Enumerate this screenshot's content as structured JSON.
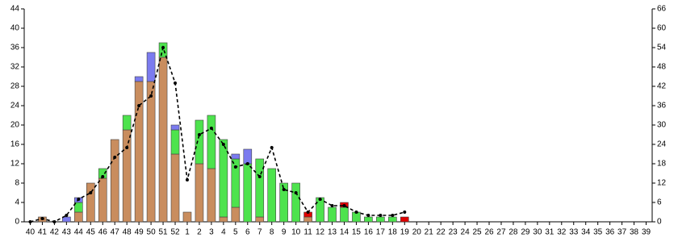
{
  "chart_data": {
    "type": "bar",
    "categories": [
      "40",
      "41",
      "42",
      "43",
      "44",
      "45",
      "46",
      "47",
      "48",
      "49",
      "50",
      "51",
      "52",
      "1",
      "2",
      "3",
      "4",
      "5",
      "6",
      "7",
      "8",
      "9",
      "10",
      "11",
      "12",
      "13",
      "14",
      "15",
      "16",
      "17",
      "18",
      "19",
      "20",
      "21",
      "22",
      "23",
      "24",
      "25",
      "26",
      "27",
      "28",
      "29",
      "30",
      "31",
      "32",
      "33",
      "34",
      "35",
      "36",
      "37",
      "38",
      "39"
    ],
    "series": [
      {
        "color": "#c98d5e",
        "values": [
          0,
          1,
          0,
          0,
          2,
          8,
          9,
          17,
          19,
          29,
          29,
          34,
          14,
          2,
          12,
          11,
          1,
          3,
          0,
          1,
          0,
          0,
          0,
          1,
          0,
          0,
          0,
          0,
          0,
          0,
          0,
          0,
          0,
          0,
          0,
          0,
          0,
          0,
          0,
          0,
          0,
          0,
          0,
          0,
          0,
          0,
          0,
          0,
          0,
          0,
          0,
          0
        ]
      },
      {
        "color": "#4de34d",
        "values": [
          0,
          0,
          0,
          0,
          2,
          0,
          2,
          0,
          3,
          0,
          0,
          3,
          5,
          0,
          9,
          11,
          16,
          10,
          12,
          12,
          11,
          8,
          8,
          0,
          5,
          3,
          3,
          2,
          1,
          1,
          1,
          0,
          0,
          0,
          0,
          0,
          0,
          0,
          0,
          0,
          0,
          0,
          0,
          0,
          0,
          0,
          0,
          0,
          0,
          0,
          0,
          0
        ]
      },
      {
        "color": "#7b7bef",
        "values": [
          0,
          0,
          0,
          1,
          1,
          0,
          0,
          0,
          0,
          1,
          6,
          0,
          1,
          0,
          0,
          0,
          0,
          1,
          3,
          0,
          0,
          0,
          0,
          0,
          0,
          0,
          0,
          0,
          0,
          0,
          0,
          0,
          0,
          0,
          0,
          0,
          0,
          0,
          0,
          0,
          0,
          0,
          0,
          0,
          0,
          0,
          0,
          0,
          0,
          0,
          0,
          0
        ]
      },
      {
        "color": "#e00000",
        "values": [
          0,
          0,
          0,
          0,
          0,
          0,
          0,
          0,
          0,
          0,
          0,
          0,
          0,
          0,
          0,
          0,
          0,
          0,
          0,
          0,
          0,
          0,
          0,
          1,
          0,
          0,
          1,
          0,
          0,
          0,
          0,
          1,
          0,
          0,
          0,
          0,
          0,
          0,
          0,
          0,
          0,
          0,
          0,
          0,
          0,
          0,
          0,
          0,
          0,
          0,
          0,
          0
        ]
      },
      {
        "type": "line",
        "axis": "y2",
        "color": "#000000",
        "values": [
          0,
          1,
          0,
          2,
          7,
          9,
          14,
          20,
          23,
          36,
          39,
          54,
          43,
          13,
          27,
          29,
          24,
          17,
          18,
          14,
          23,
          10,
          9,
          3,
          7,
          5,
          5,
          3,
          2,
          2,
          2,
          3,
          null,
          null,
          null,
          null,
          null,
          null,
          null,
          null,
          null,
          null,
          null,
          null,
          null,
          null,
          null,
          null,
          null,
          null,
          null,
          null
        ]
      }
    ],
    "ylim": [
      0,
      44
    ],
    "yticks": [
      0,
      4,
      8,
      12,
      16,
      20,
      24,
      28,
      32,
      36,
      40,
      44
    ],
    "y2lim": [
      0,
      66
    ],
    "y2ticks": [
      0,
      6,
      12,
      18,
      24,
      30,
      36,
      42,
      48,
      54,
      60,
      66
    ]
  }
}
